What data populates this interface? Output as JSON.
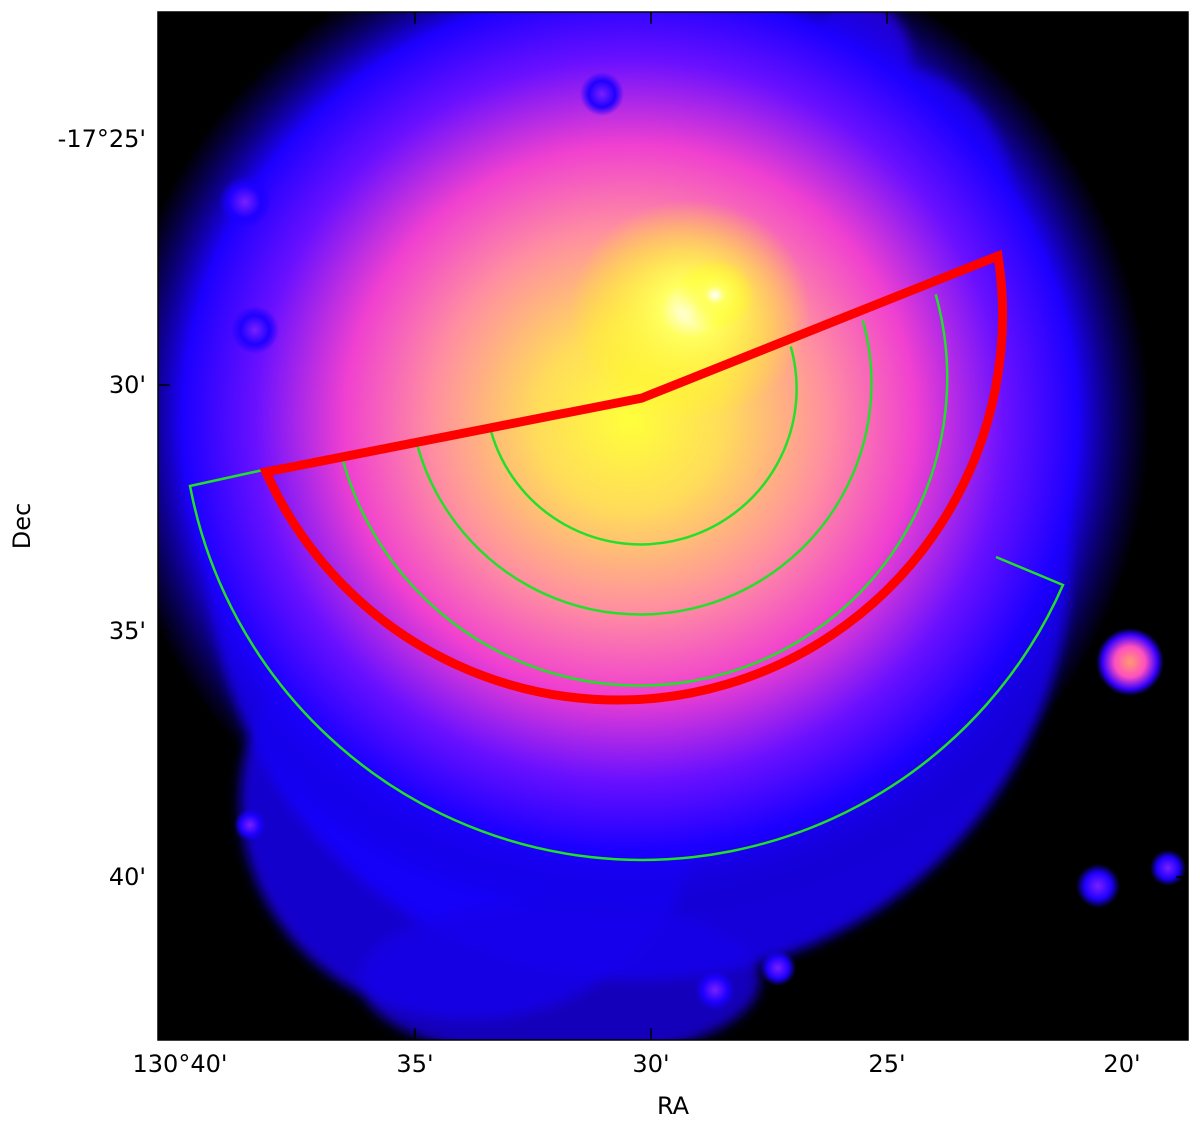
{
  "axes": {
    "x_label": "RA",
    "y_label": "Dec",
    "x_ticks": [
      "130°40'",
      "35'",
      "30'",
      "25'",
      "20'"
    ],
    "y_ticks": [
      "-17°25'",
      "30'",
      "35'",
      "40'"
    ]
  },
  "colors": {
    "frame": "#000000",
    "background": "#000000",
    "highlight_sector": "#ff0000",
    "annulus_lines": "#22e02a",
    "emission_outer": "#1400ff",
    "emission_mid": "#ff3fbf",
    "emission_core": "#ffff00"
  },
  "image_description_map": "x-ray surface brightness (colormap: black-blue-magenta-yellow-white)"
}
